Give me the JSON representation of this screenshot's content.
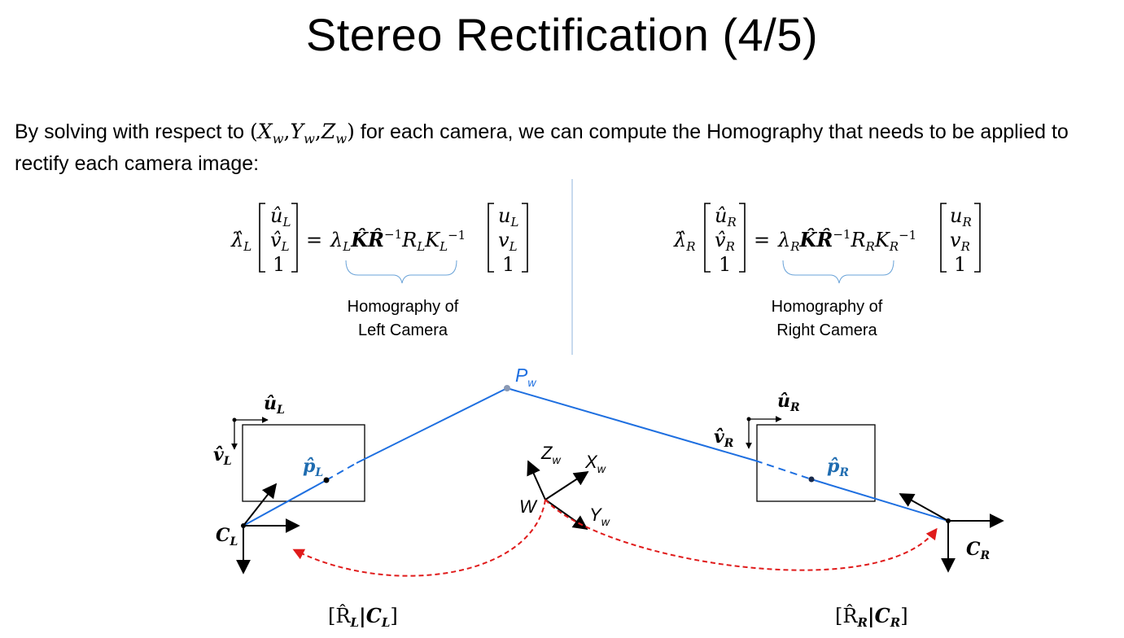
{
  "slide": {
    "title": "Stereo Rectification (4/5)",
    "intro": {
      "before": "By solving with respect to ",
      "tuple_open": "(",
      "xw": "X",
      "yw": "Y",
      "zw": "Z",
      "w_sub": "w",
      "comma": ",",
      "tuple_close": ")",
      "after": " for each camera, we can compute the Homography that needs to be applied to rectify each camera image:"
    }
  },
  "equations": {
    "left": {
      "lambda_hat": "λ̂",
      "lambda_sub": "L",
      "vec_hat": [
        "û",
        "v̂",
        "1"
      ],
      "vec_sub": [
        "L",
        "L",
        ""
      ],
      "equals": "=",
      "lambda": "λ",
      "K_hat": "K̂",
      "R_hat": "R̂",
      "inv": "−1",
      "R": "R",
      "K": "K",
      "vec": [
        "u",
        "v",
        "1"
      ],
      "caption_line1": "Homography  of",
      "caption_line2": "Left Camera"
    },
    "right": {
      "lambda_hat": "λ̂",
      "lambda_sub": "R",
      "vec_hat": [
        "û",
        "v̂",
        "1"
      ],
      "vec_sub": [
        "R",
        "R",
        ""
      ],
      "equals": "=",
      "lambda": "λ",
      "K_hat": "K̂",
      "R_hat": "R̂",
      "inv": "−1",
      "R": "R",
      "K": "K",
      "vec": [
        "u",
        "v",
        "1"
      ],
      "caption_line1": "Homography  of",
      "caption_line2": "Right Camera"
    }
  },
  "diagram": {
    "point_world": "P",
    "point_world_sub": "w",
    "left_u_label": "û",
    "left_u_sub": "L",
    "left_v_label": "v̂",
    "left_v_sub": "L",
    "left_p_label": "p̂",
    "left_p_sub": "L",
    "left_center": "C",
    "left_center_sub": "L",
    "right_u_label": "û",
    "right_u_sub": "R",
    "right_v_label": "v̂",
    "right_v_sub": "R",
    "right_p_label": "p̂",
    "right_p_sub": "R",
    "right_center": "C",
    "right_center_sub": "R",
    "world_origin": "W",
    "axis_x": "X",
    "axis_y": "Y",
    "axis_z": "Z",
    "axis_sub": "w",
    "left_pose": "[R̂",
    "left_pose_sub1": "L",
    "left_pose_mid": "|C",
    "left_pose_sub2": "L",
    "left_pose_end": "]",
    "right_pose": "[R̂",
    "right_pose_sub1": "R",
    "right_pose_mid": "|C",
    "right_pose_sub2": "R",
    "right_pose_end": "]"
  },
  "colors": {
    "ray": "#1e6fe0",
    "label_blue": "#1f6cb0",
    "dashed_red": "#e01b1b",
    "divider": "#8fb4dc"
  }
}
